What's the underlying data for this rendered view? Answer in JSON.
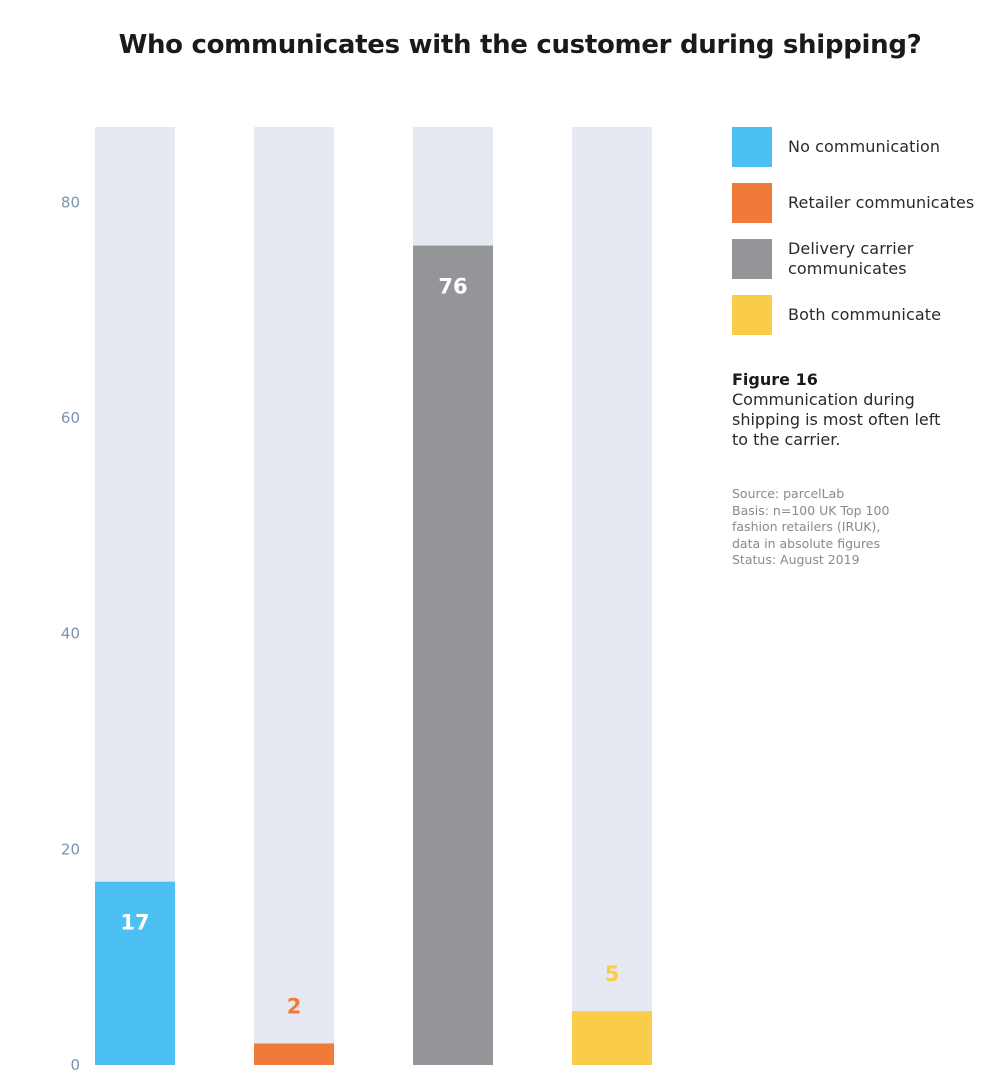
{
  "chart_data": {
    "type": "bar",
    "title": "Who communicates with the customer during shipping?",
    "categories": [
      "No communication",
      "Retailer communicates",
      "Delivery carrier communicates",
      "Both communicate"
    ],
    "values": [
      17,
      2,
      76,
      5
    ],
    "colors": [
      "#4cc0f2",
      "#f07a3a",
      "#939598",
      "#f9cc4a"
    ],
    "label_colors": [
      "#ffffff",
      "#f07a3a",
      "#ffffff",
      "#f9cc4a"
    ],
    "label_inside": [
      true,
      false,
      true,
      false
    ],
    "track_color": "#e6e8f2",
    "ylim": [
      0,
      87
    ],
    "yticks": [
      0,
      20,
      40,
      60,
      80
    ],
    "tick_color": "#7d93b2",
    "xlabel": "",
    "ylabel": "",
    "grid": false,
    "legend": "right"
  },
  "legend": {
    "items": [
      {
        "label": "No communication",
        "color": "#4cc0f2"
      },
      {
        "label": "Retailer communicates",
        "color": "#f07a3a"
      },
      {
        "label": "Delivery carrier communicates",
        "color": "#939598"
      },
      {
        "label": "Both communicate",
        "color": "#f9cc4a"
      }
    ]
  },
  "figure": {
    "title": "Figure 16",
    "caption": "Communication during shipping is most often left to the carrier."
  },
  "source": {
    "lines": [
      "Source: parcelLab",
      "Basis: n=100 UK Top 100",
      "fashion retailers (IRUK),",
      "data in absolute figures",
      "Status: August 2019"
    ]
  }
}
